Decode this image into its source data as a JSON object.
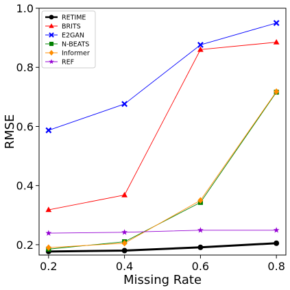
{
  "chart_data": {
    "type": "line",
    "x": [
      0.2,
      0.4,
      0.6,
      0.8
    ],
    "xticks": [
      "0.2",
      "0.4",
      "0.6",
      "0.8"
    ],
    "yticks": [
      "0.2",
      "0.4",
      "0.6",
      "0.8",
      "1.0"
    ],
    "xlabel": "Missing Rate",
    "ylabel": "RMSE",
    "xlim": [
      0.175,
      0.825
    ],
    "ylim": [
      0.165,
      1.0
    ],
    "grid": false,
    "legend_position": "top-left",
    "series": [
      {
        "name": "RETIME",
        "color": "#000000",
        "marker": "circle",
        "values": [
          0.177,
          0.18,
          0.191,
          0.205
        ]
      },
      {
        "name": "BRITS",
        "color": "#ff0000",
        "marker": "triangle",
        "values": [
          0.318,
          0.368,
          0.86,
          0.885
        ]
      },
      {
        "name": "E2GAN",
        "color": "#0000ff",
        "marker": "x",
        "values": [
          0.587,
          0.676,
          0.876,
          0.95
        ]
      },
      {
        "name": "N-BEATS",
        "color": "#008000",
        "marker": "square",
        "values": [
          0.185,
          0.21,
          0.343,
          0.716
        ]
      },
      {
        "name": "Informer",
        "color": "#ff8c00",
        "marker": "diamond",
        "values": [
          0.19,
          0.205,
          0.35,
          0.718
        ]
      },
      {
        "name": "REF",
        "color": "#9400d3",
        "marker": "star",
        "values": [
          0.239,
          0.242,
          0.249,
          0.249
        ]
      }
    ]
  }
}
